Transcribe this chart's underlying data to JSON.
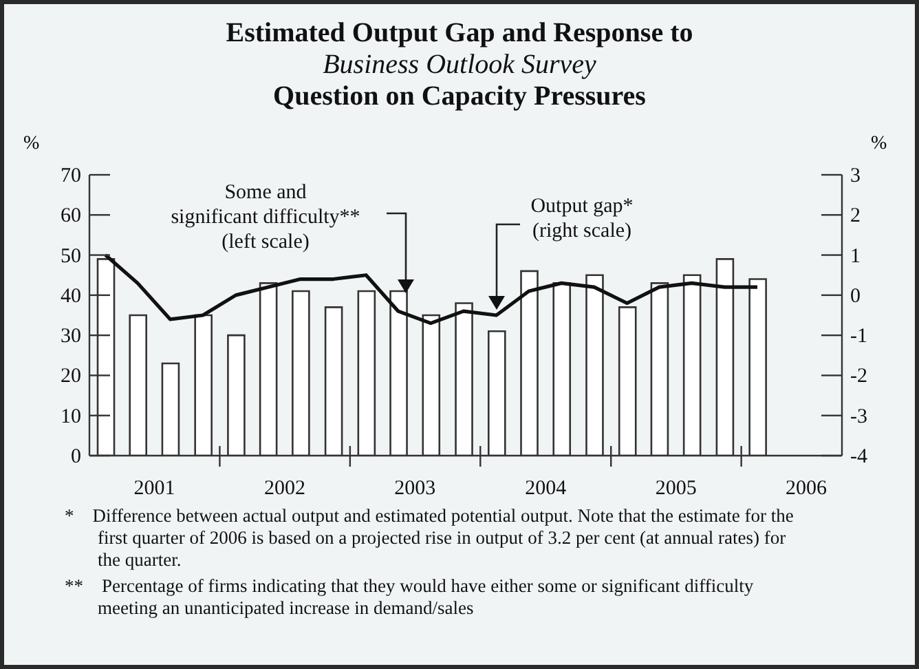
{
  "chart_data": {
    "type": "bar",
    "title": "Estimated Output Gap and Response to\nBusiness Outlook Survey\nQuestion on Capacity Pressures",
    "ylabel": "%",
    "y2label": "%",
    "x": [
      "2001-02-15",
      "2001-05-16",
      "2001-08-15",
      "2001-11-15",
      "2002-02-15",
      "2002-05-16",
      "2002-08-15",
      "2002-11-15",
      "2003-02-15",
      "2003-05-16",
      "2003-08-15",
      "2003-11-15",
      "2004-02-15",
      "2004-05-16",
      "2004-08-15",
      "2004-11-15",
      "2005-02-15",
      "2005-05-16",
      "2005-08-15",
      "2005-11-15",
      "2006-02-15"
    ],
    "xlim": [
      "2001-01-01",
      "2006-10-10"
    ],
    "xticks": [
      {
        "value": "2001-07-02",
        "label": "2001"
      },
      {
        "value": "2002-01-01",
        "label": null
      },
      {
        "value": "2002-07-02",
        "label": "2002"
      },
      {
        "value": "2003-01-01",
        "label": null
      },
      {
        "value": "2003-07-02",
        "label": "2003"
      },
      {
        "value": "2004-01-01",
        "label": null
      },
      {
        "value": "2004-07-02",
        "label": "2004"
      },
      {
        "value": "2005-01-01",
        "label": null
      },
      {
        "value": "2005-07-02",
        "label": "2005"
      },
      {
        "value": "2006-01-01",
        "label": null
      },
      {
        "value": "2006-07-02",
        "label": "2006"
      }
    ],
    "ylim": [
      0,
      70
    ],
    "yticks": [
      0,
      10,
      20,
      30,
      40,
      50,
      60,
      70
    ],
    "y2lim": [
      -4,
      3
    ],
    "y2ticks": [
      -4,
      -3,
      -2,
      -1,
      0,
      1,
      2,
      3
    ],
    "series": [
      {
        "name": "Some and\nsignificant difficulty**\n(left scale)",
        "color": "#ffffff",
        "values": [
          49,
          35,
          23,
          35,
          30,
          43,
          41,
          37,
          41,
          41,
          35,
          38,
          31,
          46,
          43,
          45,
          37,
          43,
          45,
          49,
          44
        ]
      },
      {
        "type": "line",
        "axis": "y2",
        "name": "Output gap*\n(right scale)",
        "color": "#111111",
        "values": [
          1.0,
          0.3,
          -0.6,
          -0.5,
          0.0,
          0.2,
          0.4,
          0.4,
          0.5,
          -0.4,
          -0.7,
          -0.4,
          -0.5,
          0.1,
          0.3,
          0.2,
          -0.2,
          0.2,
          0.3,
          0.2,
          0.2
        ]
      }
    ],
    "annotations": [
      "* Difference between actual output and estimated potential output. Note that the estimate for the first quarter of 2006 is based on a projected rise in output of 3.2 per cent (at annual rates) for the quarter.",
      "** Percentage of firms indicating that they would have either some or significant difficulty meeting an unanticipated increase in demand/sales"
    ]
  }
}
